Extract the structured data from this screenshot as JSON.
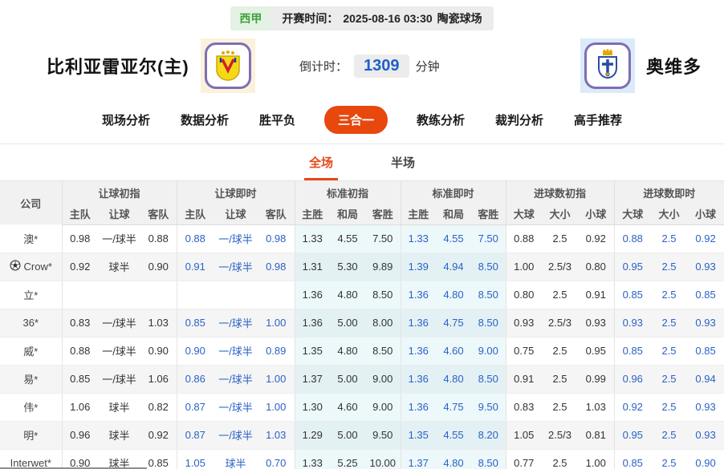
{
  "colors": {
    "accent_orange": "#e8470e",
    "subtab_orange": "#e2491a",
    "odds_blue": "#2a62c8",
    "league_green": "#3da03d",
    "logo_border_purple": "#7e6fb3",
    "countdown_blue": "#1f5fc9",
    "standard_col_cyan": "#edf8fa"
  },
  "top_bar": {
    "league": "西甲",
    "kickoff_label": "开赛时间：",
    "kickoff_time": "2025-08-16 03:30",
    "venue": "陶瓷球场"
  },
  "match": {
    "home_name": "比利亚雷亚尔(主)",
    "away_name": "奥维多",
    "home_logo": "villarreal-crest-icon",
    "away_logo": "oviedo-crest-icon",
    "countdown_label": "倒计时：",
    "countdown_value": "1309",
    "countdown_unit": "分钟"
  },
  "nav": {
    "items": [
      {
        "name": "live-analysis",
        "label": "现场分析",
        "active": false
      },
      {
        "name": "data-analysis",
        "label": "数据分析",
        "active": false
      },
      {
        "name": "win-draw-lose",
        "label": "胜平负",
        "active": false
      },
      {
        "name": "three-in-one",
        "label": "三合一",
        "active": true
      },
      {
        "name": "coach-analysis",
        "label": "教练分析",
        "active": false
      },
      {
        "name": "referee-analysis",
        "label": "裁判分析",
        "active": false
      },
      {
        "name": "expert-picks",
        "label": "高手推荐",
        "active": false
      }
    ]
  },
  "subtabs": {
    "items": [
      {
        "name": "full-match",
        "label": "全场",
        "active": true
      },
      {
        "name": "half-match",
        "label": "半场",
        "active": false
      }
    ]
  },
  "table": {
    "company_header": "公司",
    "groups": [
      {
        "name": "handicap-initial",
        "label": "让球初指",
        "cols": [
          "主队",
          "让球",
          "客队"
        ]
      },
      {
        "name": "handicap-live",
        "label": "让球即时",
        "cols": [
          "主队",
          "让球",
          "客队"
        ]
      },
      {
        "name": "standard-initial",
        "label": "标准初指",
        "cols": [
          "主胜",
          "和局",
          "客胜"
        ]
      },
      {
        "name": "standard-live",
        "label": "标准即时",
        "cols": [
          "主胜",
          "和局",
          "客胜"
        ]
      },
      {
        "name": "goals-initial",
        "label": "进球数初指",
        "cols": [
          "大球",
          "大小",
          "小球"
        ]
      },
      {
        "name": "goals-live",
        "label": "进球数即时",
        "cols": [
          "大球",
          "大小",
          "小球"
        ]
      }
    ],
    "rows": [
      {
        "company": "澳*",
        "icon": null,
        "cells": [
          "0.98",
          "一/球半",
          "0.88",
          "0.88",
          "一/球半",
          "0.98",
          "1.33",
          "4.55",
          "7.50",
          "1.33",
          "4.55",
          "7.50",
          "0.88",
          "2.5",
          "0.92",
          "0.88",
          "2.5",
          "0.92"
        ]
      },
      {
        "company": "Crow*",
        "icon": "soccer-ball-icon",
        "cells": [
          "0.92",
          "球半",
          "0.90",
          "0.91",
          "一/球半",
          "0.98",
          "1.31",
          "5.30",
          "9.89",
          "1.39",
          "4.94",
          "8.50",
          "1.00",
          "2.5/3",
          "0.80",
          "0.95",
          "2.5",
          "0.93"
        ]
      },
      {
        "company": "立*",
        "icon": null,
        "cells": [
          "",
          "",
          "",
          "",
          "",
          "",
          "1.36",
          "4.80",
          "8.50",
          "1.36",
          "4.80",
          "8.50",
          "0.80",
          "2.5",
          "0.91",
          "0.85",
          "2.5",
          "0.85"
        ]
      },
      {
        "company": "36*",
        "icon": null,
        "cells": [
          "0.83",
          "一/球半",
          "1.03",
          "0.85",
          "一/球半",
          "1.00",
          "1.36",
          "5.00",
          "8.00",
          "1.36",
          "4.75",
          "8.50",
          "0.93",
          "2.5/3",
          "0.93",
          "0.93",
          "2.5",
          "0.93"
        ]
      },
      {
        "company": "威*",
        "icon": null,
        "cells": [
          "0.88",
          "一/球半",
          "0.90",
          "0.90",
          "一/球半",
          "0.89",
          "1.35",
          "4.80",
          "8.50",
          "1.36",
          "4.60",
          "9.00",
          "0.75",
          "2.5",
          "0.95",
          "0.85",
          "2.5",
          "0.85"
        ]
      },
      {
        "company": "易*",
        "icon": null,
        "cells": [
          "0.85",
          "一/球半",
          "1.06",
          "0.86",
          "一/球半",
          "1.00",
          "1.37",
          "5.00",
          "9.00",
          "1.36",
          "4.80",
          "8.50",
          "0.91",
          "2.5",
          "0.99",
          "0.96",
          "2.5",
          "0.94"
        ]
      },
      {
        "company": "伟*",
        "icon": null,
        "cells": [
          "1.06",
          "球半",
          "0.82",
          "0.87",
          "一/球半",
          "1.00",
          "1.30",
          "4.60",
          "9.00",
          "1.36",
          "4.75",
          "9.50",
          "0.83",
          "2.5",
          "1.03",
          "0.92",
          "2.5",
          "0.93"
        ]
      },
      {
        "company": "明*",
        "icon": null,
        "cells": [
          "0.96",
          "球半",
          "0.92",
          "0.87",
          "一/球半",
          "1.03",
          "1.29",
          "5.00",
          "9.50",
          "1.35",
          "4.55",
          "8.20",
          "1.05",
          "2.5/3",
          "0.81",
          "0.95",
          "2.5",
          "0.93"
        ]
      },
      {
        "company": "Interwet*",
        "icon": null,
        "cells": [
          "0.90",
          "球半",
          "0.85",
          "1.05",
          "球半",
          "0.70",
          "1.33",
          "5.25",
          "10.00",
          "1.37",
          "4.80",
          "8.50",
          "0.77",
          "2.5",
          "1.00",
          "0.85",
          "2.5",
          "0.90"
        ]
      }
    ]
  }
}
